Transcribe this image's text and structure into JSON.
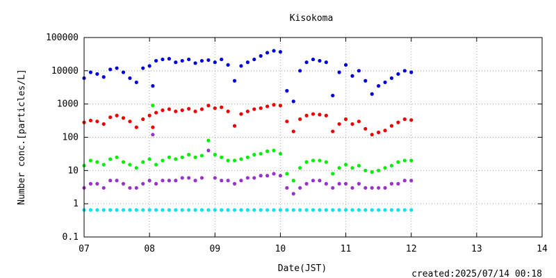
{
  "chart_data": {
    "type": "scatter",
    "title": "Kisokoma",
    "xlabel": "Date(JST)",
    "ylabel": "Number conc.[particles/L]",
    "yscale": "log",
    "ylim": [
      0.1,
      100000
    ],
    "xlim": [
      7,
      14
    ],
    "x_ticks": [
      "07",
      "08",
      "09",
      "10",
      "11",
      "12",
      "13",
      "14"
    ],
    "y_ticks": [
      "0.1",
      "1",
      "10",
      "100",
      "1000",
      "10000",
      "100000"
    ],
    "grid": true,
    "legend": "none",
    "footer": "created:2025/07/14 00:18",
    "series": [
      {
        "color": "#0000dd",
        "x": [
          7.0,
          7.1,
          7.2,
          7.3,
          7.4,
          7.5,
          7.6,
          7.7,
          7.8,
          7.9,
          8.0,
          8.05,
          8.1,
          8.2,
          8.3,
          8.4,
          8.5,
          8.6,
          8.7,
          8.8,
          8.9,
          9.0,
          9.1,
          9.2,
          9.3,
          9.4,
          9.5,
          9.6,
          9.7,
          9.8,
          9.9,
          10.0,
          10.1,
          10.2,
          10.3,
          10.4,
          10.5,
          10.6,
          10.7,
          10.8,
          10.9,
          11.0,
          11.1,
          11.2,
          11.3,
          11.4,
          11.5,
          11.6,
          11.7,
          11.8,
          11.9,
          12.0
        ],
        "y": [
          6000,
          9000,
          8000,
          6500,
          11000,
          12000,
          9000,
          6000,
          4500,
          12000,
          14000,
          3500,
          20000,
          22000,
          23000,
          18000,
          20000,
          22000,
          17000,
          20000,
          21000,
          18000,
          22000,
          15000,
          5000,
          14000,
          18000,
          22000,
          28000,
          35000,
          40000,
          37000,
          2500,
          1200,
          10000,
          18000,
          22000,
          20000,
          18000,
          1800,
          9000,
          15000,
          7000,
          10000,
          5000,
          2000,
          3500,
          4500,
          6000,
          8000,
          10000,
          9000
        ]
      },
      {
        "color": "#ee0000",
        "x": [
          7.0,
          7.1,
          7.2,
          7.3,
          7.4,
          7.5,
          7.6,
          7.7,
          7.8,
          7.9,
          8.0,
          8.05,
          8.1,
          8.2,
          8.3,
          8.4,
          8.5,
          8.6,
          8.7,
          8.8,
          8.9,
          9.0,
          9.1,
          9.2,
          9.3,
          9.4,
          9.5,
          9.6,
          9.7,
          9.8,
          9.9,
          10.0,
          10.1,
          10.2,
          10.3,
          10.4,
          10.5,
          10.6,
          10.7,
          10.8,
          10.9,
          11.0,
          11.1,
          11.2,
          11.3,
          11.4,
          11.5,
          11.6,
          11.7,
          11.8,
          11.9,
          12.0
        ],
        "y": [
          280,
          320,
          300,
          250,
          400,
          450,
          380,
          300,
          200,
          350,
          450,
          200,
          550,
          650,
          700,
          600,
          650,
          720,
          600,
          700,
          900,
          750,
          800,
          600,
          220,
          500,
          600,
          700,
          750,
          850,
          950,
          900,
          300,
          150,
          350,
          450,
          500,
          480,
          450,
          150,
          250,
          350,
          250,
          300,
          180,
          120,
          140,
          160,
          220,
          280,
          350,
          330
        ]
      },
      {
        "color": "#00ee00",
        "x": [
          7.0,
          7.1,
          7.2,
          7.3,
          7.4,
          7.5,
          7.6,
          7.7,
          7.8,
          7.9,
          8.0,
          8.05,
          8.1,
          8.2,
          8.3,
          8.4,
          8.5,
          8.6,
          8.7,
          8.8,
          8.9,
          9.0,
          9.1,
          9.2,
          9.3,
          9.4,
          9.5,
          9.6,
          9.7,
          9.8,
          9.9,
          10.0,
          10.1,
          10.2,
          10.3,
          10.4,
          10.5,
          10.6,
          10.7,
          10.8,
          10.9,
          11.0,
          11.1,
          11.2,
          11.3,
          11.4,
          11.5,
          11.6,
          11.7,
          11.8,
          11.9,
          12.0
        ],
        "y": [
          14,
          20,
          18,
          15,
          22,
          25,
          18,
          15,
          12,
          18,
          22,
          900,
          15,
          20,
          25,
          22,
          25,
          30,
          25,
          28,
          80,
          30,
          25,
          20,
          20,
          22,
          25,
          30,
          32,
          38,
          40,
          32,
          8,
          5,
          12,
          18,
          20,
          20,
          18,
          8,
          12,
          15,
          12,
          14,
          10,
          9,
          10,
          12,
          14,
          18,
          20,
          20
        ]
      },
      {
        "color": "#9932cc",
        "x": [
          7.0,
          7.1,
          7.2,
          7.3,
          7.4,
          7.5,
          7.6,
          7.7,
          7.8,
          7.9,
          8.0,
          8.05,
          8.1,
          8.2,
          8.3,
          8.4,
          8.5,
          8.6,
          8.7,
          8.8,
          8.9,
          9.0,
          9.1,
          9.2,
          9.3,
          9.4,
          9.5,
          9.6,
          9.7,
          9.8,
          9.9,
          10.0,
          10.1,
          10.2,
          10.3,
          10.4,
          10.5,
          10.6,
          10.7,
          10.8,
          10.9,
          11.0,
          11.1,
          11.2,
          11.3,
          11.4,
          11.5,
          11.6,
          11.7,
          11.8,
          11.9,
          12.0
        ],
        "y": [
          3,
          4,
          4,
          3,
          5,
          5,
          4,
          3,
          3,
          4,
          5,
          120,
          4,
          5,
          5,
          5,
          6,
          6,
          5,
          6,
          40,
          6,
          5,
          5,
          4,
          5,
          6,
          6,
          7,
          7,
          8,
          7,
          3,
          2,
          3,
          4,
          5,
          5,
          4,
          3,
          4,
          4,
          3,
          4,
          3,
          3,
          3,
          3,
          4,
          4,
          5,
          5
        ]
      },
      {
        "color": "#00e5ee",
        "x": [
          7.0,
          7.1,
          7.2,
          7.3,
          7.4,
          7.5,
          7.6,
          7.7,
          7.8,
          7.9,
          8.0,
          8.1,
          8.2,
          8.3,
          8.4,
          8.5,
          8.6,
          8.7,
          8.8,
          8.9,
          9.0,
          9.1,
          9.2,
          9.3,
          9.4,
          9.5,
          9.6,
          9.7,
          9.8,
          9.9,
          10.0,
          10.1,
          10.2,
          10.3,
          10.4,
          10.5,
          10.6,
          10.7,
          10.8,
          10.9,
          11.0,
          11.1,
          11.2,
          11.3,
          11.4,
          11.5,
          11.6,
          11.7,
          11.8,
          11.9,
          12.0
        ],
        "y": [
          0.65,
          0.65,
          0.65,
          0.65,
          0.65,
          0.65,
          0.65,
          0.65,
          0.65,
          0.65,
          0.65,
          0.65,
          0.65,
          0.65,
          0.65,
          0.65,
          0.65,
          0.65,
          0.65,
          0.65,
          0.65,
          0.65,
          0.65,
          0.65,
          0.65,
          0.65,
          0.65,
          0.65,
          0.65,
          0.65,
          0.65,
          0.65,
          0.65,
          0.65,
          0.65,
          0.65,
          0.65,
          0.65,
          0.65,
          0.65,
          0.65,
          0.65,
          0.65,
          0.65,
          0.65,
          0.65,
          0.65,
          0.65,
          0.65,
          0.65,
          0.65
        ]
      }
    ]
  }
}
